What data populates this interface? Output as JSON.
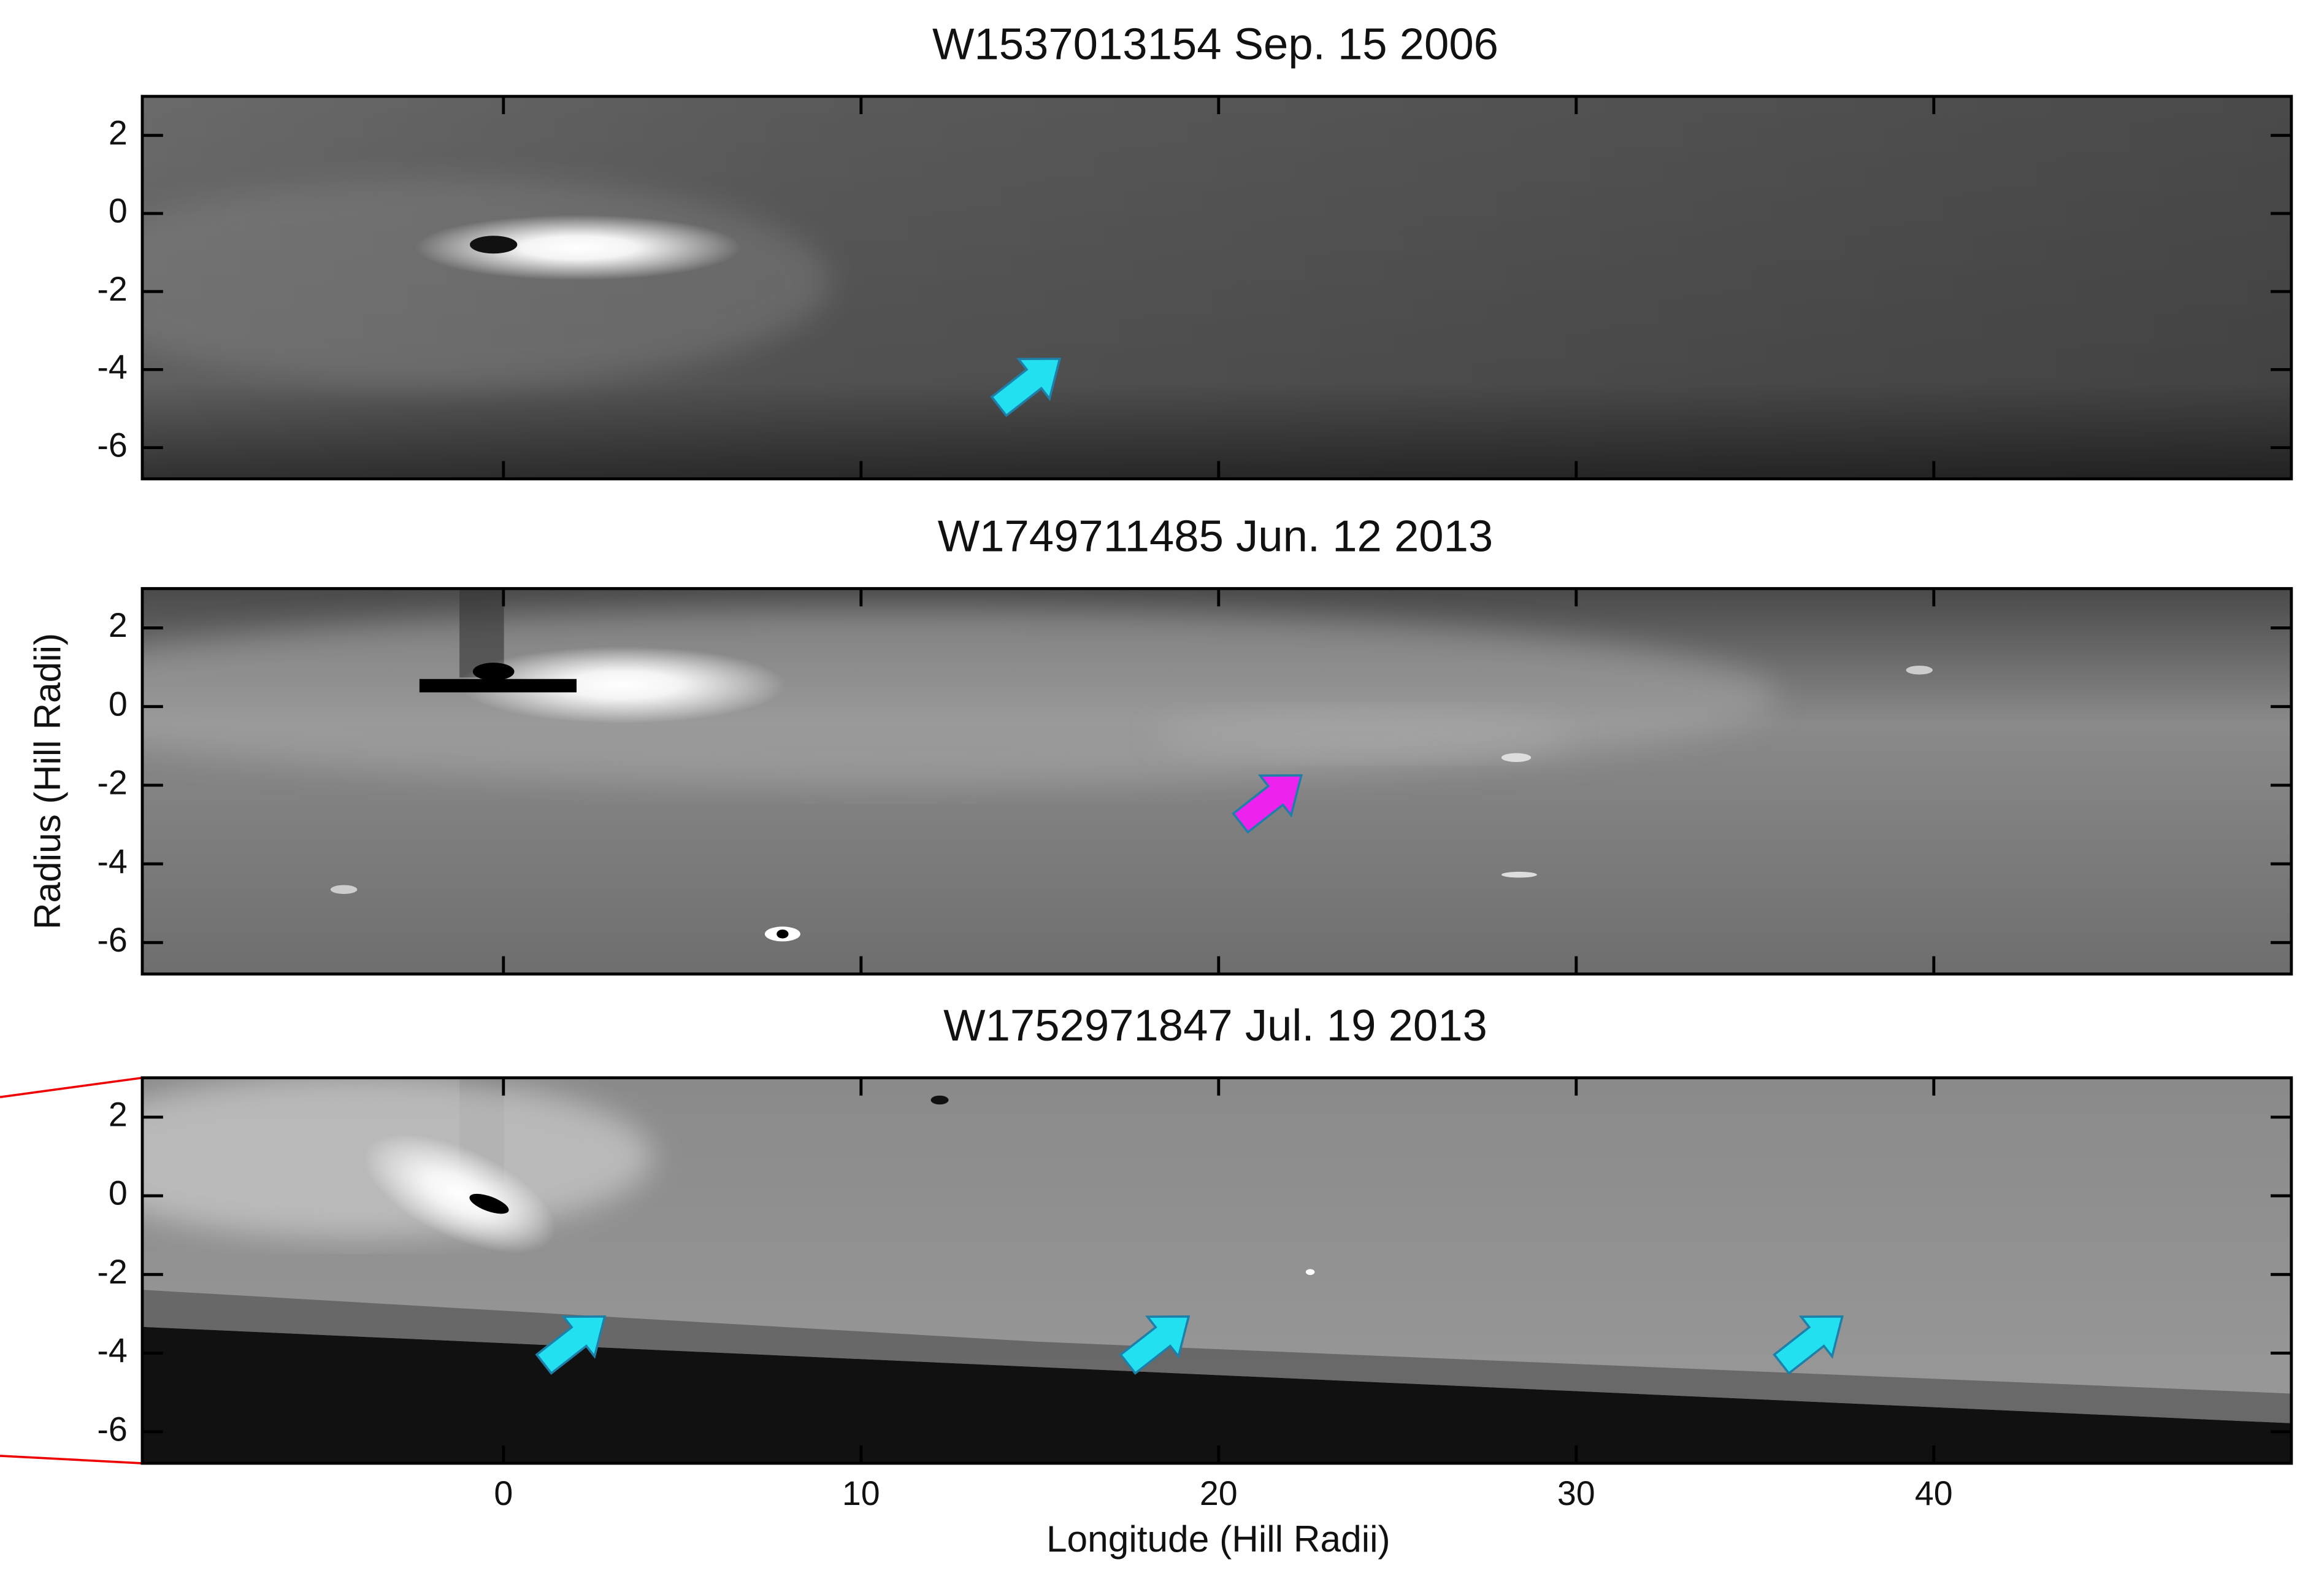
{
  "chart_data": [
    {
      "type": "image",
      "title": "W1537013154 Sep. 15 2006",
      "ylim": [
        -6.8,
        3.0
      ],
      "yticks": [
        2,
        0,
        -2,
        -4,
        -6
      ]
    },
    {
      "type": "image",
      "title": "W1749711485 Jun. 12 2013",
      "ylabel": "Radius (Hill Radii)",
      "ylim": [
        -6.8,
        3.0
      ],
      "yticks": [
        2,
        0,
        -2,
        -4,
        -6
      ]
    },
    {
      "type": "image",
      "title": "W1752971847 Jul. 19 2013",
      "xlabel": "Longitude (Hill Radii)",
      "xlim": [
        -10.1,
        50
      ],
      "xticks": [
        0,
        10,
        20,
        30,
        40
      ],
      "ylim": [
        -6.8,
        3.0
      ],
      "yticks": [
        2,
        0,
        -2,
        -4,
        -6
      ]
    }
  ]
}
